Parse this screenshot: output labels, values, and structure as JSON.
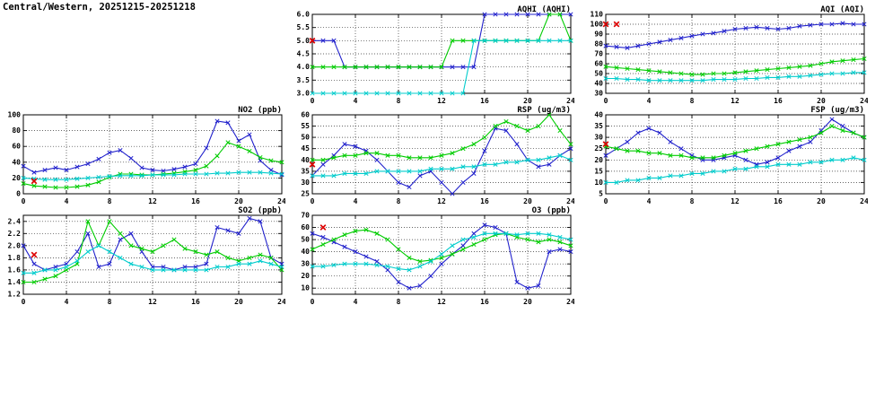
{
  "page": {
    "title": "Central/Western, 20251215-20251218"
  },
  "colors": {
    "blue": "#2222cc",
    "green": "#00cc00",
    "cyan": "#00cccc",
    "red": "#dd0000",
    "frame": "#000000"
  },
  "x_hours": [
    0,
    1,
    2,
    3,
    4,
    5,
    6,
    7,
    8,
    9,
    10,
    11,
    12,
    13,
    14,
    15,
    16,
    17,
    18,
    19,
    20,
    21,
    22,
    23,
    24
  ],
  "x_ticks": [
    0,
    4,
    8,
    12,
    16,
    20,
    24
  ],
  "chart_data": [
    {
      "name": "aqhi",
      "type": "line",
      "title": "AQHI (AQHI)",
      "xlabel": "",
      "ylabel": "",
      "xlim": [
        0,
        24
      ],
      "ylim": [
        3.0,
        6.0
      ],
      "yticks": [
        3.0,
        3.5,
        4.0,
        4.5,
        5.0,
        5.5,
        6.0
      ],
      "ydec": 1,
      "grid": true,
      "legend": "none",
      "series": [
        {
          "name": "blue",
          "color": "#2222cc",
          "values": [
            5,
            5,
            5,
            4,
            4,
            4,
            4,
            4,
            4,
            4,
            4,
            4,
            4,
            4,
            4,
            4,
            6,
            6,
            6,
            6,
            6,
            6,
            6,
            6,
            6
          ]
        },
        {
          "name": "green",
          "color": "#00cc00",
          "values": [
            4,
            4,
            4,
            4,
            4,
            4,
            4,
            4,
            4,
            4,
            4,
            4,
            4,
            5,
            5,
            5,
            5,
            5,
            5,
            5,
            5,
            5,
            6,
            6,
            5
          ]
        },
        {
          "name": "cyan",
          "color": "#00cccc",
          "values": [
            3,
            3,
            3,
            3,
            3,
            3,
            3,
            3,
            3,
            3,
            3,
            3,
            3,
            3,
            3,
            5,
            5,
            5,
            5,
            5,
            5,
            5,
            5,
            5,
            5
          ]
        }
      ],
      "red_marker": [
        {
          "x": 0,
          "y": 5.0
        }
      ]
    },
    {
      "name": "aqi",
      "type": "line",
      "title": "AQI (AQI)",
      "xlabel": "",
      "ylabel": "",
      "xlim": [
        0,
        24
      ],
      "ylim": [
        30,
        110
      ],
      "yticks": [
        30,
        40,
        50,
        60,
        70,
        80,
        90,
        100,
        110
      ],
      "ydec": 0,
      "grid": true,
      "legend": "none",
      "series": [
        {
          "name": "blue",
          "color": "#2222cc",
          "values": [
            78,
            77,
            76,
            78,
            80,
            82,
            84,
            86,
            88,
            90,
            91,
            93,
            95,
            96,
            97,
            96,
            95,
            96,
            98,
            99,
            100,
            100,
            101,
            100,
            100
          ]
        },
        {
          "name": "green",
          "color": "#00cc00",
          "values": [
            57,
            56,
            55,
            54,
            53,
            52,
            51,
            50,
            49,
            49,
            50,
            50,
            51,
            52,
            53,
            54,
            55,
            56,
            57,
            58,
            60,
            62,
            63,
            64,
            65
          ]
        },
        {
          "name": "cyan",
          "color": "#00cccc",
          "values": [
            45,
            45,
            44,
            44,
            43,
            43,
            43,
            43,
            43,
            43,
            44,
            44,
            44,
            45,
            45,
            46,
            46,
            47,
            47,
            48,
            49,
            50,
            50,
            51,
            51
          ]
        }
      ],
      "red_marker": [
        {
          "x": 0,
          "y": 100
        },
        {
          "x": 1,
          "y": 100
        }
      ]
    },
    {
      "name": "no2",
      "type": "line",
      "title": "NO2 (ppb)",
      "xlabel": "",
      "ylabel": "",
      "xlim": [
        0,
        24
      ],
      "ylim": [
        0,
        100
      ],
      "yticks": [
        0,
        20,
        40,
        60,
        80,
        100
      ],
      "ydec": 0,
      "grid": true,
      "legend": "none",
      "series": [
        {
          "name": "blue",
          "color": "#2222cc",
          "values": [
            35,
            27,
            30,
            33,
            30,
            34,
            38,
            44,
            52,
            55,
            45,
            33,
            30,
            29,
            31,
            34,
            38,
            58,
            92,
            90,
            67,
            75,
            42,
            30,
            24
          ]
        },
        {
          "name": "green",
          "color": "#00cc00",
          "values": [
            13,
            10,
            9,
            8,
            8,
            9,
            11,
            15,
            21,
            25,
            25,
            24,
            24,
            25,
            26,
            28,
            30,
            35,
            48,
            65,
            60,
            54,
            46,
            42,
            40
          ]
        },
        {
          "name": "cyan",
          "color": "#00cccc",
          "values": [
            20,
            19,
            18,
            18,
            18,
            19,
            20,
            21,
            22,
            23,
            23,
            23,
            24,
            24,
            24,
            25,
            25,
            25,
            26,
            26,
            27,
            27,
            27,
            26,
            25
          ]
        }
      ],
      "red_marker": [
        {
          "x": 1,
          "y": 16
        }
      ]
    },
    {
      "name": "rsp",
      "type": "line",
      "title": "RSP (ug/m3)",
      "xlabel": "",
      "ylabel": "",
      "xlim": [
        0,
        24
      ],
      "ylim": [
        25,
        60
      ],
      "yticks": [
        25,
        30,
        35,
        40,
        45,
        50,
        55,
        60
      ],
      "ydec": 0,
      "grid": true,
      "legend": "none",
      "series": [
        {
          "name": "blue",
          "color": "#2222cc",
          "values": [
            33,
            38,
            42,
            47,
            46,
            44,
            40,
            35,
            30,
            28,
            33,
            35,
            30,
            25,
            30,
            34,
            44,
            54,
            53,
            47,
            40,
            37,
            38,
            42,
            45
          ]
        },
        {
          "name": "green",
          "color": "#00cc00",
          "values": [
            40,
            40,
            41,
            42,
            42,
            43,
            43,
            42,
            42,
            41,
            41,
            41,
            42,
            43,
            45,
            47,
            50,
            55,
            57,
            55,
            53,
            55,
            60,
            53,
            47
          ]
        },
        {
          "name": "cyan",
          "color": "#00cccc",
          "values": [
            33,
            33,
            33,
            34,
            34,
            34,
            35,
            35,
            35,
            35,
            35,
            36,
            36,
            36,
            37,
            37,
            38,
            38,
            39,
            39,
            40,
            40,
            41,
            42,
            40
          ]
        }
      ],
      "red_marker": [
        {
          "x": 0,
          "y": 38
        }
      ]
    },
    {
      "name": "fsp",
      "type": "line",
      "title": "FSP (ug/m3)",
      "xlabel": "",
      "ylabel": "",
      "xlim": [
        0,
        24
      ],
      "ylim": [
        5,
        40
      ],
      "yticks": [
        5,
        10,
        15,
        20,
        25,
        30,
        35,
        40
      ],
      "ydec": 0,
      "grid": true,
      "legend": "none",
      "series": [
        {
          "name": "blue",
          "color": "#2222cc",
          "values": [
            22,
            25,
            28,
            32,
            34,
            32,
            28,
            25,
            22,
            20,
            20,
            21,
            22,
            20,
            18,
            19,
            21,
            24,
            26,
            28,
            33,
            38,
            35,
            32,
            30
          ]
        },
        {
          "name": "green",
          "color": "#00cc00",
          "values": [
            26,
            25,
            24,
            24,
            23,
            23,
            22,
            22,
            21,
            21,
            21,
            22,
            23,
            24,
            25,
            26,
            27,
            28,
            29,
            30,
            32,
            35,
            33,
            32,
            30
          ]
        },
        {
          "name": "cyan",
          "color": "#00cccc",
          "values": [
            10,
            10,
            11,
            11,
            12,
            12,
            13,
            13,
            14,
            14,
            15,
            15,
            16,
            16,
            17,
            17,
            18,
            18,
            18,
            19,
            19,
            20,
            20,
            21,
            20
          ]
        }
      ],
      "red_marker": [
        {
          "x": 0,
          "y": 27
        }
      ]
    },
    {
      "name": "so2",
      "type": "line",
      "title": "SO2 (ppb)",
      "xlabel": "",
      "ylabel": "",
      "xlim": [
        0,
        24
      ],
      "ylim": [
        1.2,
        2.5
      ],
      "yticks": [
        1.2,
        1.4,
        1.6,
        1.8,
        2.0,
        2.2,
        2.4
      ],
      "ydec": 1,
      "grid": true,
      "legend": "none",
      "series": [
        {
          "name": "blue",
          "color": "#2222cc",
          "values": [
            2.0,
            1.7,
            1.6,
            1.65,
            1.7,
            1.9,
            2.2,
            1.65,
            1.7,
            2.1,
            2.2,
            1.9,
            1.65,
            1.65,
            1.6,
            1.65,
            1.65,
            1.7,
            2.3,
            2.25,
            2.2,
            2.45,
            2.4,
            1.8,
            1.7
          ]
        },
        {
          "name": "green",
          "color": "#00cc00",
          "values": [
            1.4,
            1.4,
            1.45,
            1.5,
            1.6,
            1.7,
            2.4,
            2.0,
            2.4,
            2.2,
            2.0,
            1.95,
            1.9,
            2.0,
            2.1,
            1.95,
            1.9,
            1.85,
            1.9,
            1.8,
            1.75,
            1.8,
            1.85,
            1.8,
            1.6
          ]
        },
        {
          "name": "cyan",
          "color": "#00cccc",
          "values": [
            1.55,
            1.55,
            1.6,
            1.6,
            1.65,
            1.75,
            1.9,
            2.0,
            1.9,
            1.8,
            1.7,
            1.65,
            1.6,
            1.6,
            1.6,
            1.6,
            1.6,
            1.6,
            1.65,
            1.65,
            1.7,
            1.7,
            1.75,
            1.7,
            1.65
          ]
        }
      ],
      "red_marker": [
        {
          "x": 1,
          "y": 1.85
        }
      ]
    },
    {
      "name": "o3",
      "type": "line",
      "title": "O3 (ppb)",
      "xlabel": "",
      "ylabel": "",
      "xlim": [
        0,
        24
      ],
      "ylim": [
        5,
        70
      ],
      "yticks": [
        10,
        20,
        30,
        40,
        50,
        60,
        70
      ],
      "ydec": 0,
      "grid": true,
      "legend": "none",
      "series": [
        {
          "name": "blue",
          "color": "#2222cc",
          "values": [
            55,
            52,
            48,
            44,
            40,
            36,
            32,
            25,
            15,
            10,
            12,
            20,
            30,
            38,
            45,
            55,
            62,
            60,
            55,
            15,
            10,
            12,
            40,
            42,
            40
          ]
        },
        {
          "name": "green",
          "color": "#00cc00",
          "values": [
            42,
            46,
            50,
            54,
            57,
            58,
            55,
            50,
            42,
            35,
            32,
            33,
            35,
            38,
            42,
            46,
            50,
            54,
            55,
            52,
            50,
            48,
            50,
            48,
            45
          ]
        },
        {
          "name": "cyan",
          "color": "#00cccc",
          "values": [
            28,
            28,
            29,
            30,
            30,
            30,
            29,
            28,
            26,
            25,
            28,
            32,
            38,
            45,
            50,
            52,
            55,
            55,
            55,
            54,
            55,
            55,
            54,
            52,
            50
          ]
        }
      ],
      "red_marker": [
        {
          "x": 1,
          "y": 60
        }
      ]
    }
  ]
}
